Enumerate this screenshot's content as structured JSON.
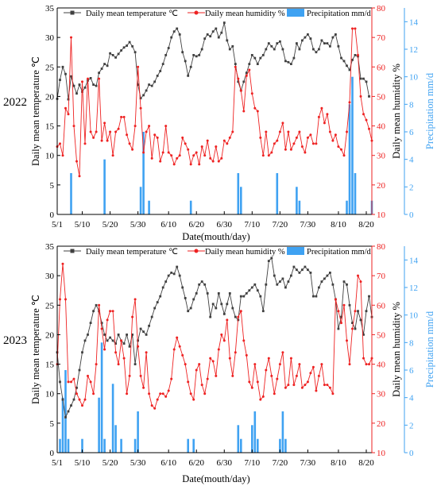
{
  "chart_data": [
    {
      "type": "line",
      "panel_label": "2022",
      "xlabel": "Date(mouth/day)",
      "ylabel_left": "Daily mean temperature ℃",
      "ylabel_right1": "Daily mean humidity %",
      "ylabel_right2": "Precipitation mm/d",
      "x_tick_labels": [
        "5/1",
        "5/10",
        "5/20",
        "5/30",
        "6/10",
        "6/20",
        "6/30",
        "7/10",
        "7/20",
        "7/30",
        "8/10",
        "8/20"
      ],
      "x_tick_days": [
        0,
        9,
        19,
        29,
        40,
        50,
        60,
        70,
        80,
        90,
        101,
        111
      ],
      "xlim": [
        0,
        113
      ],
      "ylim_left": [
        0,
        35
      ],
      "yticks_left": [
        0,
        5,
        10,
        15,
        20,
        25,
        30,
        35
      ],
      "ylim_right1": [
        10,
        80
      ],
      "yticks_right1": [
        10,
        20,
        30,
        40,
        50,
        60,
        70,
        80
      ],
      "ylim_right2": [
        0,
        15
      ],
      "yticks_right2": [
        0,
        2,
        4,
        6,
        8,
        10,
        12,
        14
      ],
      "legend": [
        "Daily mean temperature ℃",
        "Daily mean humidity %",
        "Precipitation mm/d"
      ],
      "colors": {
        "temperature": "#404040",
        "humidity": "#ee2222",
        "precipitation": "#3fa2f2"
      },
      "series": [
        {
          "name": "Daily mean temperature ℃",
          "axis": "left",
          "values": [
            19.6,
            22.8,
            25,
            23.8,
            19.5,
            23.4,
            21.8,
            20.5,
            22,
            20.8,
            21.5,
            22.7,
            23.1,
            22,
            21.8,
            24,
            24.7,
            25.5,
            25.2,
            27.3,
            27,
            26.6,
            27.2,
            27.8,
            28.3,
            28.6,
            29.2,
            28.5,
            27.5,
            22,
            19.7,
            20.2,
            21,
            22,
            21.8,
            22.5,
            23.5,
            24.3,
            25.5,
            27,
            28.2,
            30,
            31,
            31.5,
            30.5,
            27.5,
            26,
            23.5,
            25,
            27,
            26.8,
            27,
            28,
            29.8,
            30.5,
            30.2,
            31,
            31.5,
            30,
            30.8,
            32.5,
            29.5,
            28,
            28.5,
            25.5,
            22.5,
            21,
            22.5,
            24,
            25.5,
            27,
            26.5,
            25.5,
            26.5,
            27,
            28,
            29,
            28.5,
            28,
            29,
            29.3,
            28,
            26,
            25.8,
            25.5,
            26.5,
            29,
            28,
            29.5,
            30,
            30.5,
            29.8,
            28,
            27.5,
            28,
            29.5,
            29,
            29,
            28.5,
            30,
            30.5,
            28.5,
            26.5,
            26,
            25.2,
            24.5,
            26.2,
            27,
            26.8,
            23,
            23,
            22.5,
            20
          ]
        },
        {
          "name": "Daily mean humidity %",
          "axis": "right1",
          "values": [
            33,
            34,
            30,
            46,
            44,
            70,
            40,
            28,
            23,
            55,
            34,
            56,
            38,
            36,
            38,
            56,
            35,
            41,
            35,
            38,
            30,
            38,
            39,
            43,
            43,
            37,
            34,
            32,
            40,
            60,
            46,
            31,
            38,
            40,
            29,
            37,
            36,
            28,
            31,
            40,
            31,
            30,
            27,
            29,
            30,
            36,
            34,
            32,
            27,
            30,
            31,
            27,
            33,
            30,
            35,
            29,
            28,
            33,
            28,
            29,
            35,
            34,
            36,
            38,
            60,
            56,
            52,
            45,
            57,
            59,
            51,
            46,
            45,
            36,
            30,
            38,
            30,
            31,
            34,
            35,
            38,
            41,
            32,
            38,
            32,
            34,
            36,
            38,
            33,
            31,
            36,
            37,
            34,
            34,
            43,
            46,
            41,
            44,
            38,
            35,
            37,
            33,
            32,
            30,
            38,
            48,
            73,
            73,
            64,
            50,
            44,
            42,
            39,
            35
          ]
        },
        {
          "name": "Precipitation mm/d",
          "axis": "right2",
          "values": [
            0,
            0,
            0,
            0,
            0,
            3,
            0,
            0,
            0,
            0,
            0,
            0,
            0,
            0,
            0,
            0,
            0,
            4,
            0,
            0,
            0,
            0,
            0,
            0,
            0,
            0,
            0,
            0,
            0,
            0,
            2,
            6,
            0,
            1,
            0,
            0,
            0,
            0,
            0,
            0,
            0,
            0,
            0,
            0,
            0,
            0,
            0,
            0,
            1,
            0,
            0,
            0,
            0,
            0,
            0,
            0,
            0,
            0,
            0,
            0,
            0,
            0,
            0,
            0,
            0,
            3,
            2,
            0,
            0,
            0,
            0,
            0,
            0,
            0,
            0,
            0,
            0,
            0,
            0,
            3,
            0,
            0,
            0,
            0,
            0,
            0,
            2,
            1,
            0,
            0,
            0,
            0,
            0,
            0,
            0,
            0,
            0,
            0,
            0,
            0,
            0,
            0,
            0,
            0,
            1,
            8,
            10,
            3,
            0,
            0,
            0,
            0,
            0,
            1
          ]
        }
      ]
    },
    {
      "type": "line",
      "panel_label": "2023",
      "xlabel": "Date(mouth/day)",
      "ylabel_left": "Daily mean temperature ℃",
      "ylabel_right1": "Daily mean humidity %",
      "ylabel_right2": "Precipitation mm/d",
      "x_tick_labels": [
        "5/1",
        "5/10",
        "5/20",
        "5/30",
        "6/10",
        "6/20",
        "6/30",
        "7/10",
        "7/20",
        "7/30",
        "8/10",
        "8/20"
      ],
      "x_tick_days": [
        0,
        9,
        19,
        29,
        40,
        50,
        60,
        70,
        80,
        90,
        101,
        111
      ],
      "xlim": [
        0,
        113
      ],
      "ylim_left": [
        0,
        35
      ],
      "yticks_left": [
        0,
        5,
        10,
        15,
        20,
        25,
        30,
        35
      ],
      "ylim_right1": [
        10,
        80
      ],
      "yticks_right1": [
        10,
        20,
        30,
        40,
        50,
        60,
        70,
        80
      ],
      "ylim_right2": [
        0,
        15
      ],
      "yticks_right2": [
        0,
        2,
        4,
        6,
        8,
        10,
        12,
        14
      ],
      "legend": [
        "Daily mean temperature ℃",
        "Daily mean humidity %",
        "Precipitation mm/d"
      ],
      "colors": {
        "temperature": "#404040",
        "humidity": "#ee2222",
        "precipitation": "#3fa2f2"
      },
      "series": [
        {
          "name": "Daily mean temperature ℃",
          "axis": "left",
          "values": [
            17,
            12,
            9,
            6,
            7,
            8,
            9,
            11,
            14,
            17,
            19,
            20,
            22,
            24,
            25,
            24,
            22,
            20,
            19,
            19.5,
            19,
            18.5,
            20,
            19,
            18.5,
            20,
            18,
            20,
            15,
            19,
            21,
            20.5,
            20,
            21.5,
            23,
            24.5,
            25.5,
            26.5,
            28,
            29,
            30,
            30.5,
            30.3,
            31.5,
            30,
            28,
            26.2,
            24,
            24.5,
            26,
            27,
            28.5,
            29,
            28.5,
            27,
            23,
            25.2,
            24.5,
            27,
            25.2,
            23.5,
            25.2,
            27,
            24.5,
            23,
            22.5,
            26.5,
            26.5,
            27,
            27.5,
            28,
            28.5,
            27.5,
            26.5,
            24,
            28.5,
            32.5,
            33,
            30,
            28.5,
            29,
            29.5,
            28,
            29,
            30,
            31.5,
            31,
            30.5,
            31,
            31.5,
            31,
            30.5,
            26.5,
            26.5,
            28,
            29,
            29.5,
            30,
            30.5,
            28.5,
            26,
            21,
            23,
            29,
            28.5,
            25,
            22,
            21,
            24,
            22.5,
            20,
            24,
            26.5,
            23
          ]
        },
        {
          "name": "Daily mean humidity %",
          "axis": "right1",
          "values": [
            40,
            62,
            74,
            62,
            34,
            34,
            35,
            30,
            28,
            26,
            28,
            36,
            34,
            30,
            40,
            60,
            52,
            45,
            55,
            58,
            58,
            44,
            40,
            48,
            42,
            30,
            36,
            56,
            62,
            46,
            36,
            32,
            44,
            30,
            26,
            25,
            28,
            30,
            30,
            29,
            31,
            35,
            45,
            49,
            46,
            43,
            40,
            34,
            30,
            28,
            38,
            40,
            33,
            30,
            35,
            42,
            41,
            36,
            45,
            50,
            48,
            55,
            42,
            36,
            44,
            56,
            58,
            48,
            43,
            34,
            32,
            40,
            34,
            28,
            29,
            38,
            42,
            36,
            30,
            35,
            40,
            44,
            32,
            33,
            42,
            33,
            36,
            40,
            32,
            33,
            34,
            37,
            39,
            31,
            36,
            40,
            33,
            33,
            32,
            30,
            62,
            58,
            54,
            60,
            48,
            40,
            52,
            58,
            70,
            68,
            42,
            40,
            40,
            42
          ]
        },
        {
          "name": "Precipitation mm/d",
          "axis": "right2",
          "values": [
            0,
            1,
            4,
            6,
            1,
            0,
            0,
            0,
            0,
            1,
            0,
            0,
            0,
            0,
            0,
            4,
            8,
            1,
            0,
            0,
            5,
            2,
            0,
            1,
            0,
            0,
            0,
            0,
            1,
            3,
            0,
            0,
            0,
            0,
            0,
            0,
            0,
            0,
            0,
            0,
            0,
            0,
            0,
            0,
            0,
            0,
            0,
            1,
            0,
            1,
            0,
            0,
            0,
            0,
            0,
            0,
            0,
            0,
            0,
            0,
            0,
            0,
            0,
            0,
            0,
            2,
            1,
            0,
            0,
            0,
            2,
            3,
            1,
            0,
            0,
            0,
            0,
            0,
            0,
            0,
            1,
            3,
            1,
            0,
            0,
            0,
            0,
            0,
            0,
            0,
            0,
            0,
            0,
            0,
            0,
            0,
            0,
            0,
            0,
            0,
            0,
            0,
            0,
            0,
            0,
            0,
            0,
            0,
            0,
            0,
            0,
            0,
            0,
            0
          ]
        }
      ]
    }
  ]
}
